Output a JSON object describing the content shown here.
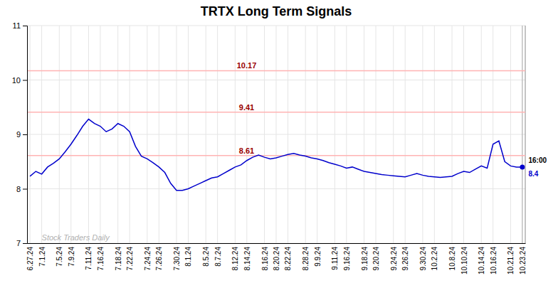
{
  "chart_data": {
    "type": "line",
    "title": "TRTX Long Term Signals",
    "categories": [
      "6.27.24",
      null,
      "7.1.24",
      null,
      null,
      "7.5.24",
      null,
      "7.9.24",
      null,
      null,
      "7.11.24",
      null,
      "7.16.24",
      null,
      null,
      "7.18.24",
      null,
      "7.22.24",
      null,
      null,
      "7.24.24",
      null,
      "7.26.24",
      null,
      null,
      "7.30.24",
      null,
      "8.1.24",
      null,
      null,
      "8.5.24",
      null,
      "8.7.24",
      null,
      null,
      "8.12.24",
      null,
      "8.14.24",
      null,
      null,
      "8.16.24",
      null,
      "8.20.24",
      null,
      "8.22.24",
      null,
      null,
      "8.28.24",
      null,
      "9.9.24",
      null,
      null,
      "9.11.24",
      null,
      "9.16.24",
      null,
      null,
      "9.18.24",
      null,
      "9.20.24",
      null,
      null,
      "9.24.24",
      null,
      "9.26.24",
      null,
      null,
      "9.30.24",
      null,
      "10.2.24",
      null,
      null,
      "10.8.24",
      null,
      "10.10.24",
      null,
      null,
      "10.14.24",
      null,
      "10.16.24",
      null,
      null,
      "10.21.24",
      null,
      "10.23.24"
    ],
    "values": [
      8.23,
      8.32,
      8.27,
      8.4,
      8.47,
      8.55,
      8.68,
      8.82,
      8.98,
      9.15,
      9.28,
      9.2,
      9.15,
      9.05,
      9.1,
      9.2,
      9.15,
      9.05,
      8.78,
      8.6,
      8.55,
      8.48,
      8.4,
      8.3,
      8.1,
      7.97,
      7.97,
      8.0,
      8.05,
      8.1,
      8.15,
      8.2,
      8.22,
      8.28,
      8.34,
      8.4,
      8.44,
      8.52,
      8.58,
      8.62,
      8.58,
      8.55,
      8.57,
      8.6,
      8.63,
      8.65,
      8.62,
      8.6,
      8.57,
      8.55,
      8.52,
      8.48,
      8.45,
      8.42,
      8.38,
      8.4,
      8.36,
      8.32,
      8.3,
      8.28,
      8.26,
      8.25,
      8.24,
      8.23,
      8.22,
      8.25,
      8.28,
      8.25,
      8.23,
      8.22,
      8.21,
      8.22,
      8.23,
      8.28,
      8.32,
      8.3,
      8.36,
      8.42,
      8.38,
      8.82,
      8.88,
      8.5,
      8.42,
      8.4,
      8.4
    ],
    "color": "#0000cc",
    "ylim": [
      7,
      11
    ],
    "yticks": [
      7,
      8,
      9,
      10,
      11
    ],
    "grid": true,
    "hlines": [
      {
        "y": 10.17,
        "label": "10.17",
        "color": "#ffb3b3"
      },
      {
        "y": 9.41,
        "label": "9.41",
        "color": "#ffb3b3"
      },
      {
        "y": 8.61,
        "label": "8.61",
        "color": "#ffb3b3"
      }
    ],
    "annotations": [
      "Stock Traders Daily",
      "16:00",
      "8.4"
    ]
  }
}
